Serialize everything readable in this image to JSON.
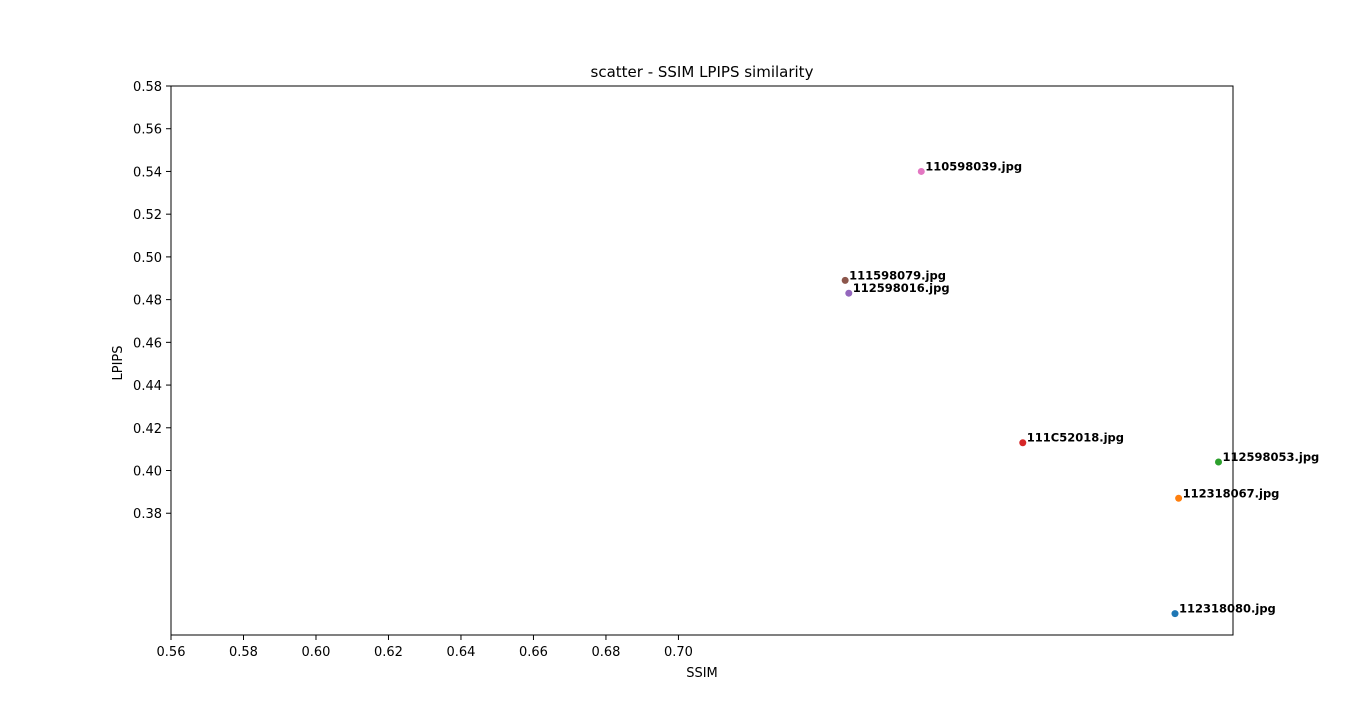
{
  "chart_data": {
    "type": "scatter",
    "title": "scatter - SSIM LPIPS similarity",
    "xlabel": "SSIM",
    "ylabel": "LPIPS",
    "xlim": [
      0.56,
      0.853
    ],
    "ylim": [
      0.323,
      0.58
    ],
    "xticks": [
      "0.56",
      "0.58",
      "0.60",
      "0.62",
      "0.64",
      "0.66",
      "0.68",
      "0.70"
    ],
    "yticks": [
      "0.58",
      "0.56",
      "0.54",
      "0.52",
      "0.50",
      "0.48",
      "0.46",
      "0.44",
      "0.42",
      "0.40",
      "0.38"
    ],
    "grid": false,
    "points": [
      {
        "label": "110598039.jpg",
        "x": 0.767,
        "y": 0.54,
        "color": "#e377c2"
      },
      {
        "label": "111598079.jpg",
        "x": 0.746,
        "y": 0.489,
        "color": "#8c564b"
      },
      {
        "label": "112598016.jpg",
        "x": 0.747,
        "y": 0.483,
        "color": "#9467bd"
      },
      {
        "label": "111C52018.jpg",
        "x": 0.795,
        "y": 0.413,
        "color": "#d62728"
      },
      {
        "label": "112598053.jpg",
        "x": 0.849,
        "y": 0.404,
        "color": "#2ca02c"
      },
      {
        "label": "112318067.jpg",
        "x": 0.838,
        "y": 0.387,
        "color": "#ff7f0e"
      },
      {
        "label": "112318080.jpg",
        "x": 0.837,
        "y": 0.333,
        "color": "#1f77b4"
      }
    ]
  }
}
